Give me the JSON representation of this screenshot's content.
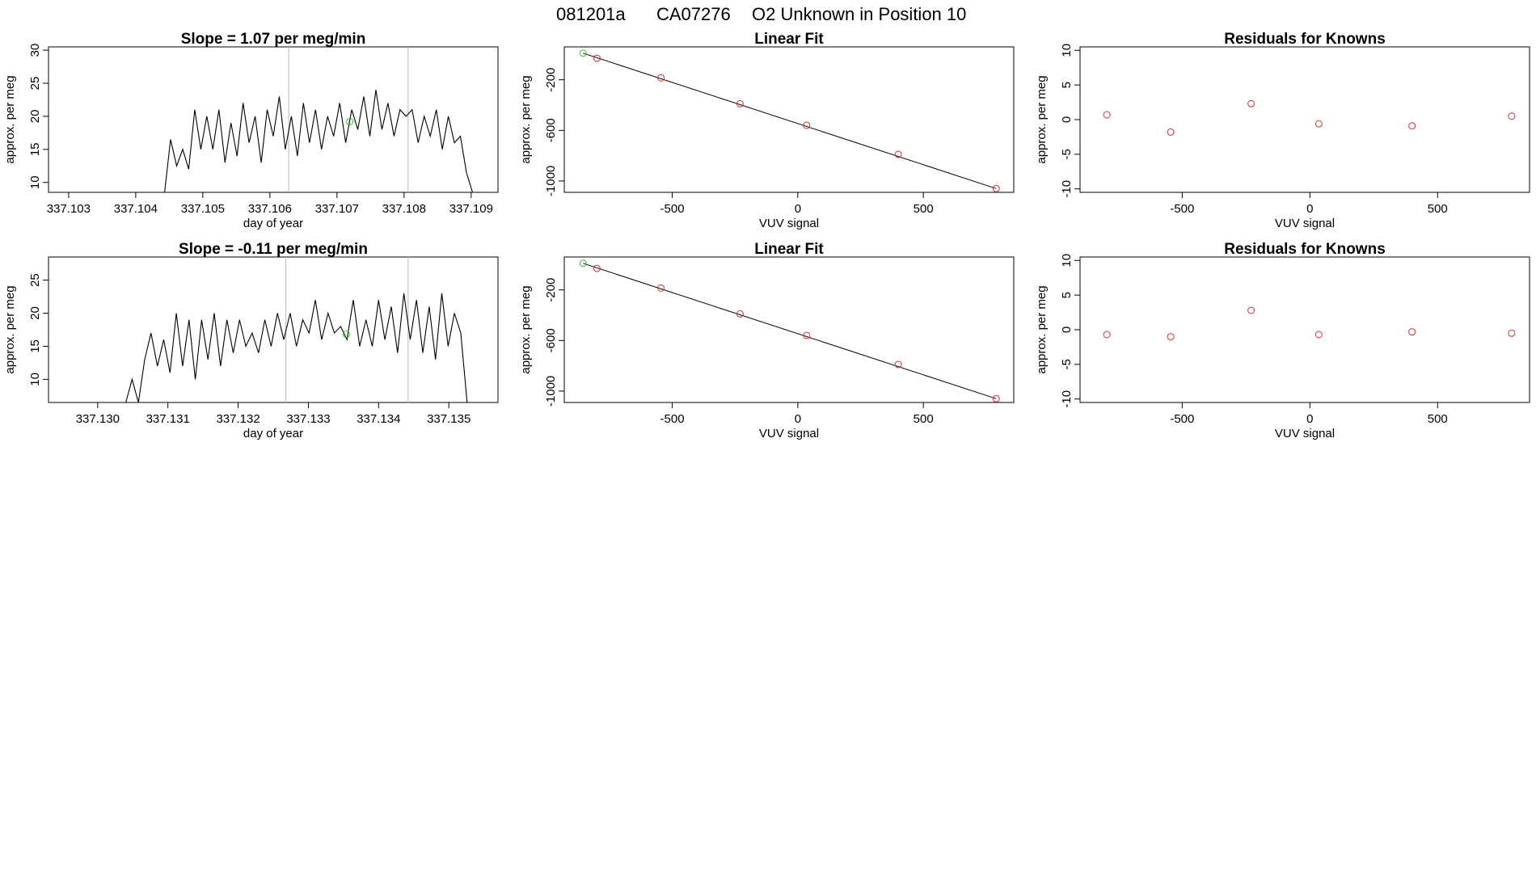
{
  "figure": {
    "run_id": "081201a",
    "tank": "CA07276",
    "description": "O2 Unknown in Position  10",
    "colors": {
      "known": "#d03030",
      "unknown": "#30c030",
      "line": "#000000",
      "vline": "#bbbbbb",
      "frame": "#000000"
    }
  },
  "chart_data": [
    {
      "type": "line",
      "title": "Slope =  1.07  per meg/min",
      "xlabel": "day of year",
      "ylabel": "approx. per meg",
      "xlim": [
        337.1027,
        337.1094
      ],
      "ylim": [
        8.5,
        30.5
      ],
      "xticks": [
        337.103,
        337.104,
        337.105,
        337.106,
        337.107,
        337.108,
        337.109
      ],
      "xtick_labels": [
        "337.103",
        "337.104",
        "337.105",
        "337.106",
        "337.107",
        "337.108",
        "337.109"
      ],
      "yticks": [
        10,
        15,
        20,
        25,
        30
      ],
      "ytick_labels": [
        "10",
        "15",
        "20",
        "25",
        "30"
      ],
      "vlines": [
        337.10628,
        337.10806
      ],
      "marker": {
        "x": 337.10719,
        "y": 19.2
      },
      "x": [
        337.10443,
        337.10452,
        337.10461,
        337.1047,
        337.10479,
        337.10488,
        337.10497,
        337.10506,
        337.10515,
        337.10524,
        337.10533,
        337.10542,
        337.10551,
        337.1056,
        337.10569,
        337.10578,
        337.10587,
        337.10596,
        337.10605,
        337.10614,
        337.10623,
        337.10632,
        337.10641,
        337.1065,
        337.10659,
        337.10668,
        337.10677,
        337.10686,
        337.10695,
        337.10704,
        337.10713,
        337.10722,
        337.10731,
        337.1074,
        337.10749,
        337.10758,
        337.10767,
        337.10776,
        337.10785,
        337.10794,
        337.10803,
        337.10812,
        337.10821,
        337.1083,
        337.10839,
        337.10848,
        337.10857,
        337.10866,
        337.10875,
        337.10884,
        337.10893,
        337.10902
      ],
      "y": [
        8.5,
        16.5,
        12.5,
        15,
        12,
        21,
        15,
        20,
        15,
        21,
        13,
        19,
        14,
        22,
        16,
        20,
        13,
        21,
        17,
        23,
        15,
        20,
        14,
        22,
        16,
        21,
        15,
        20,
        17,
        22,
        16,
        21,
        18,
        23,
        17,
        24,
        18,
        22,
        17,
        21,
        20,
        21,
        16,
        20,
        17,
        21,
        15,
        20,
        16,
        17,
        11.5,
        8.5
      ]
    },
    {
      "type": "scatter",
      "title": "Linear Fit",
      "xlabel": "VUV signal",
      "ylabel": "approx. per meg",
      "xlim": [
        -930,
        860
      ],
      "ylim": [
        -1090,
        60
      ],
      "xticks": [
        -500,
        0,
        500
      ],
      "xtick_labels": [
        "-500",
        "0",
        "500"
      ],
      "yticks": [
        -200,
        -600,
        -1000
      ],
      "ytick_labels": [
        "-200",
        "-600",
        "-1000"
      ],
      "fit_line": {
        "x": [
          -855,
          790
        ],
        "y": [
          10,
          -1060
        ]
      },
      "known_points": {
        "x": [
          -800,
          -545,
          -230,
          35,
          400,
          790
        ],
        "y": [
          -30,
          -185,
          -390,
          -560,
          -790,
          -1060
        ]
      },
      "unknown_points": {
        "x": [
          -855
        ],
        "y": [
          10
        ]
      }
    },
    {
      "type": "scatter",
      "title": "Residuals for Knowns",
      "xlabel": "VUV signal",
      "ylabel": "approx. per meg",
      "xlim": [
        -900,
        860
      ],
      "ylim": [
        -10.5,
        10.5
      ],
      "xticks": [
        -500,
        0,
        500
      ],
      "xtick_labels": [
        "-500",
        "0",
        "500"
      ],
      "yticks": [
        -10,
        -5,
        0,
        5,
        10
      ],
      "ytick_labels": [
        "-10",
        "-5",
        "0",
        "5",
        "10"
      ],
      "known_points": {
        "x": [
          -795,
          -545,
          -230,
          35,
          400,
          790
        ],
        "y": [
          0.7,
          -1.8,
          2.3,
          -0.6,
          -0.9,
          0.5
        ]
      }
    },
    {
      "type": "line",
      "title": "Slope =  -0.11  per meg/min",
      "xlabel": "day of year",
      "ylabel": "approx. per meg",
      "xlim": [
        337.1293,
        337.1357
      ],
      "ylim": [
        6.5,
        28.5
      ],
      "xticks": [
        337.13,
        337.131,
        337.132,
        337.133,
        337.134,
        337.135
      ],
      "xtick_labels": [
        "337.130",
        "337.131",
        "337.132",
        "337.133",
        "337.134",
        "337.135"
      ],
      "yticks": [
        10,
        15,
        20,
        25
      ],
      "ytick_labels": [
        "10",
        "15",
        "20",
        "25"
      ],
      "vlines": [
        337.13268,
        337.13442
      ],
      "marker": {
        "x": 337.13354,
        "y": 16.8
      },
      "x": [
        337.1304,
        337.13049,
        337.13058,
        337.13067,
        337.13076,
        337.13085,
        337.13094,
        337.13103,
        337.13112,
        337.13121,
        337.1313,
        337.13139,
        337.13148,
        337.13157,
        337.13166,
        337.13175,
        337.13184,
        337.13193,
        337.13202,
        337.13211,
        337.1322,
        337.13229,
        337.13238,
        337.13247,
        337.13256,
        337.13265,
        337.13274,
        337.13283,
        337.13292,
        337.13301,
        337.1331,
        337.13319,
        337.13328,
        337.13337,
        337.13346,
        337.13355,
        337.13364,
        337.13373,
        337.13382,
        337.13391,
        337.134,
        337.13409,
        337.13418,
        337.13427,
        337.13436,
        337.13445,
        337.13454,
        337.13463,
        337.13472,
        337.13481,
        337.1349,
        337.13499,
        337.13508,
        337.13517,
        337.13526
      ],
      "y": [
        6.5,
        10,
        6.5,
        13,
        17,
        12,
        16,
        11,
        20,
        12,
        19,
        10,
        19,
        13,
        20,
        12,
        19,
        14,
        19,
        15,
        17,
        14,
        19,
        15,
        20,
        16,
        20,
        15,
        19,
        17,
        22,
        16,
        20,
        17,
        18,
        16,
        22,
        15,
        19,
        15,
        22,
        16,
        21,
        14,
        23,
        16,
        22,
        14,
        21,
        13,
        23,
        15,
        20,
        17,
        6.5
      ]
    },
    {
      "type": "scatter",
      "title": "Linear Fit",
      "xlabel": "VUV signal",
      "ylabel": "approx. per meg",
      "xlim": [
        -930,
        860
      ],
      "ylim": [
        -1090,
        60
      ],
      "xticks": [
        -500,
        0,
        500
      ],
      "xtick_labels": [
        "-500",
        "0",
        "500"
      ],
      "yticks": [
        -200,
        -600,
        -1000
      ],
      "ytick_labels": [
        "-200",
        "-600",
        "-1000"
      ],
      "fit_line": {
        "x": [
          -855,
          790
        ],
        "y": [
          10,
          -1060
        ]
      },
      "known_points": {
        "x": [
          -800,
          -545,
          -230,
          35,
          400,
          790
        ],
        "y": [
          -30,
          -185,
          -390,
          -560,
          -790,
          -1060
        ]
      },
      "unknown_points": {
        "x": [
          -855
        ],
        "y": [
          10
        ]
      }
    },
    {
      "type": "scatter",
      "title": "Residuals for Knowns",
      "xlabel": "VUV signal",
      "ylabel": "approx. per meg",
      "xlim": [
        -900,
        860
      ],
      "ylim": [
        -10.5,
        10.5
      ],
      "xticks": [
        -500,
        0,
        500
      ],
      "xtick_labels": [
        "-500",
        "0",
        "500"
      ],
      "yticks": [
        -10,
        -5,
        0,
        5,
        10
      ],
      "ytick_labels": [
        "-10",
        "-5",
        "0",
        "5",
        "10"
      ],
      "known_points": {
        "x": [
          -795,
          -545,
          -230,
          35,
          400,
          790
        ],
        "y": [
          -0.7,
          -1.0,
          2.8,
          -0.7,
          -0.3,
          -0.5
        ]
      }
    }
  ]
}
